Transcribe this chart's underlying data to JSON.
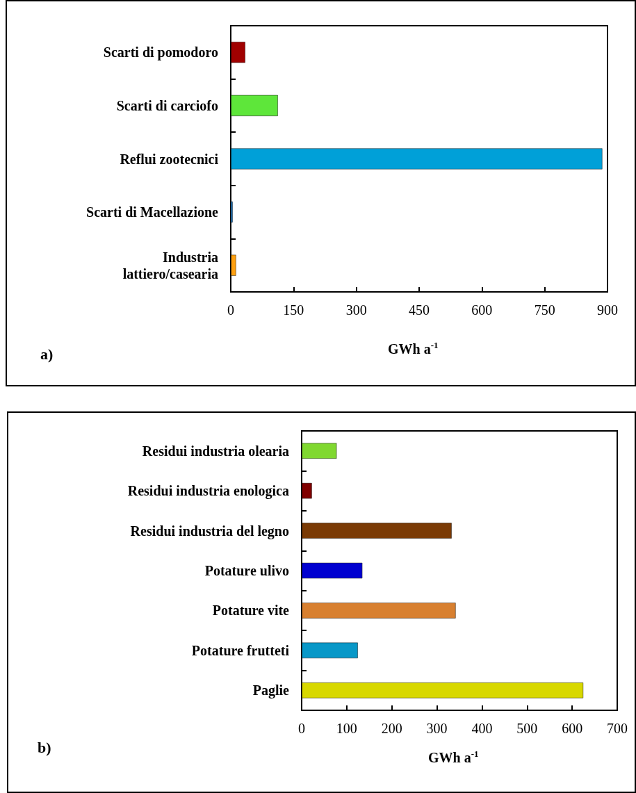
{
  "chart_data": [
    {
      "type": "bar",
      "orientation": "horizontal",
      "categories": [
        "Scarti di pomodoro",
        "Scarti di carciofo",
        "Reflui zootecnici",
        "Scarti di Macellazione",
        "Industria\nlattiero/casearia"
      ],
      "values": [
        35,
        113,
        888,
        5,
        13
      ],
      "colors": [
        "#a00000",
        "#5ee63a",
        "#00a0d8",
        "#2b8ee0",
        "#ffa010"
      ],
      "xlabel": "GWh a$^{-1}$",
      "xlim": [
        0,
        900
      ],
      "xticks": [
        0,
        150,
        300,
        450,
        600,
        750,
        900
      ],
      "annotations": [
        "a)"
      ]
    },
    {
      "type": "bar",
      "orientation": "horizontal",
      "categories": [
        "Residui industria olearia",
        "Residui industria enologica",
        "Residui industria del legno",
        "Potature ulivo",
        "Potature vite",
        "Potature frutteti",
        "Paglie"
      ],
      "values": [
        78,
        23,
        333,
        135,
        342,
        125,
        625
      ],
      "colors": [
        "#80d830",
        "#800000",
        "#7a3a05",
        "#0000d0",
        "#d88030",
        "#0898c8",
        "#d8d800"
      ],
      "xlabel": "GWh a$^{-1}$",
      "xlim": [
        0,
        700
      ],
      "xticks": [
        0,
        100,
        200,
        300,
        400,
        500,
        600,
        700
      ],
      "annotations": [
        "b)"
      ]
    }
  ]
}
